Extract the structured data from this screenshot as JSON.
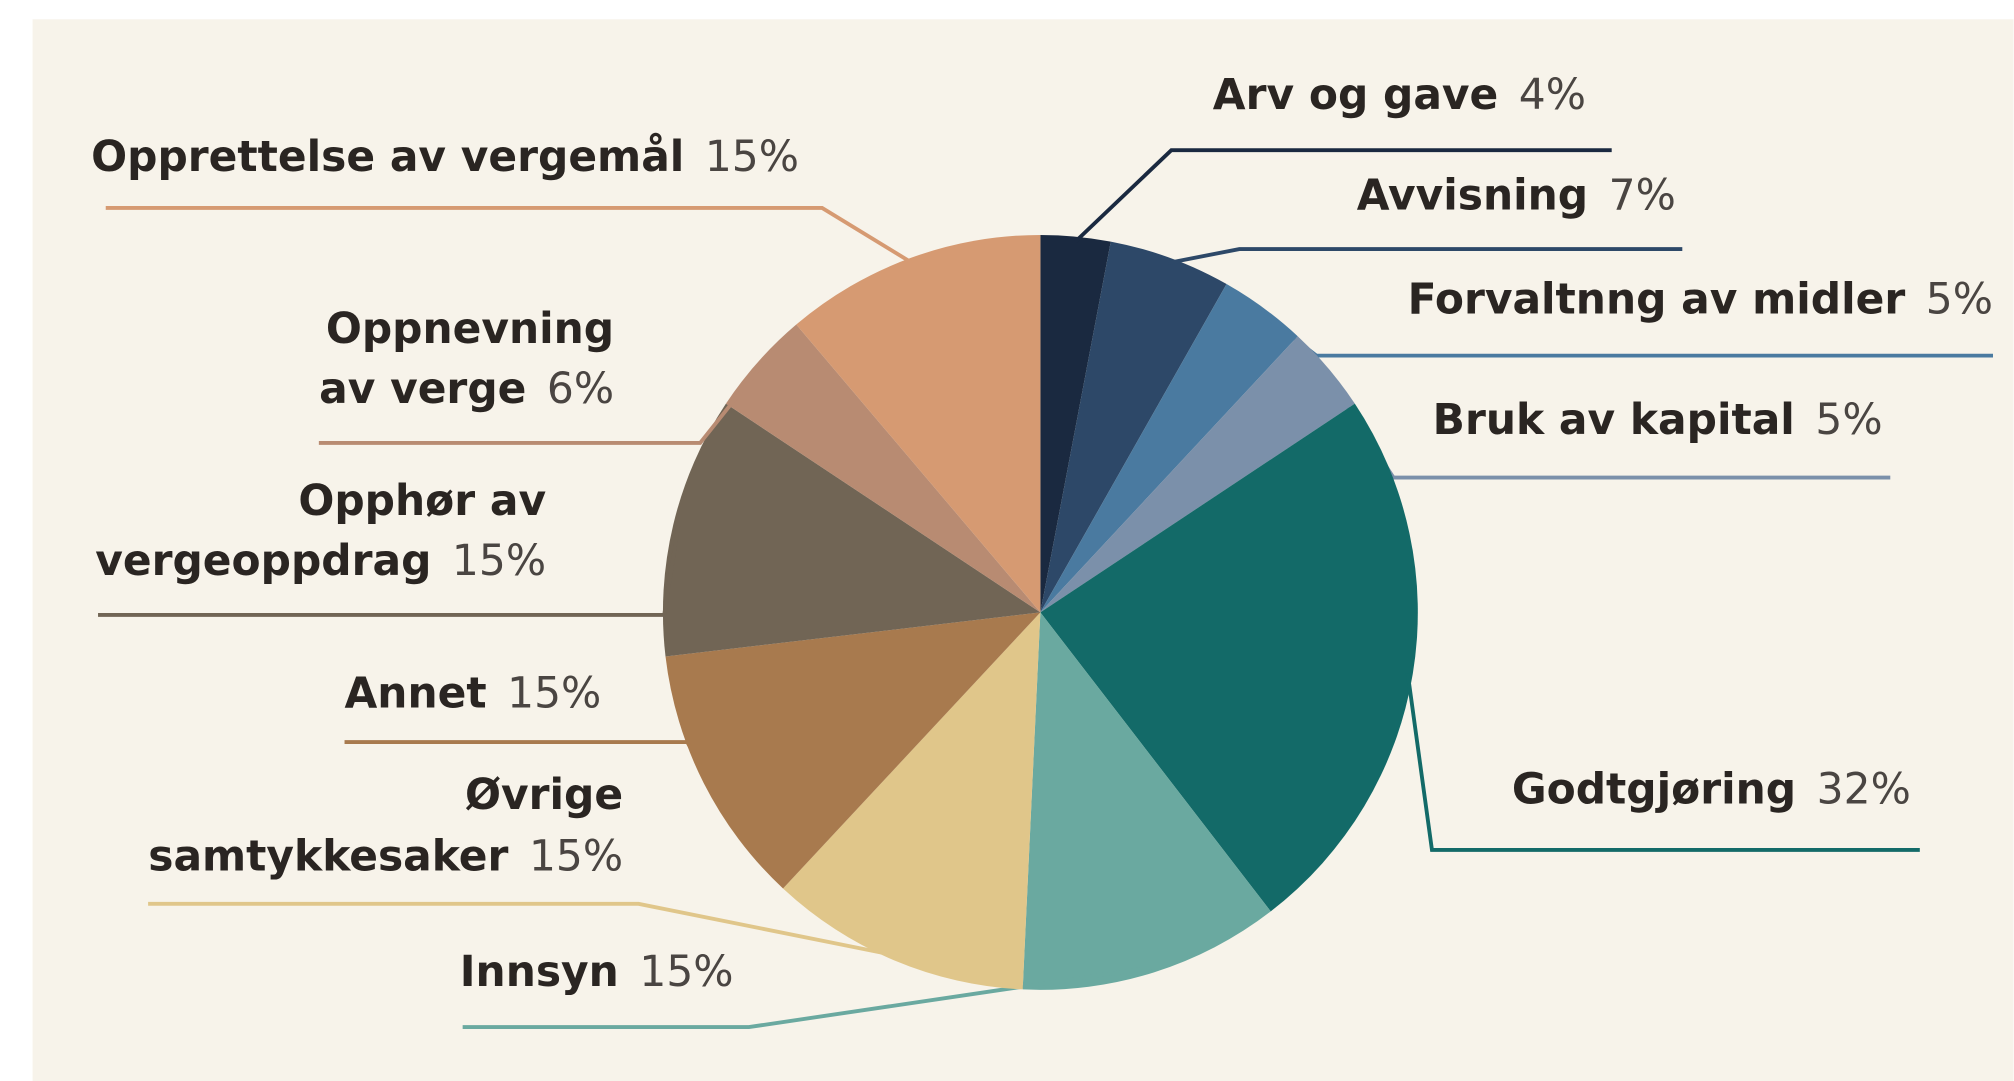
{
  "chart_data": {
    "type": "pie",
    "categories": [
      [
        "Arv og gave"
      ],
      [
        "Avvisning"
      ],
      [
        "Forvaltnng av midler"
      ],
      [
        "Bruk av kapital"
      ],
      [
        "Godtgjøring"
      ],
      [
        "Innsyn"
      ],
      [
        "Øvrige",
        "samtykkesaker"
      ],
      [
        "Annet"
      ],
      [
        "Opphør av",
        "vergeoppdrag"
      ],
      [
        "Oppnevning",
        "av verge"
      ],
      [
        "Opprettelse av vergemål"
      ]
    ],
    "values": [
      4,
      7,
      5,
      5,
      32,
      15,
      15,
      15,
      15,
      6,
      15
    ],
    "value_labels": [
      "4%",
      "7%",
      "5%",
      "5%",
      "32%",
      "15%",
      "15%",
      "15%",
      "15%",
      "6%",
      "15%"
    ],
    "colors": [
      "#1a2940",
      "#2d4868",
      "#4a7aa0",
      "#7b90aa",
      "#136a68",
      "#6aa9a0",
      "#e0c68a",
      "#a87a4e",
      "#716555",
      "#b88b72",
      "#d69a72"
    ]
  }
}
